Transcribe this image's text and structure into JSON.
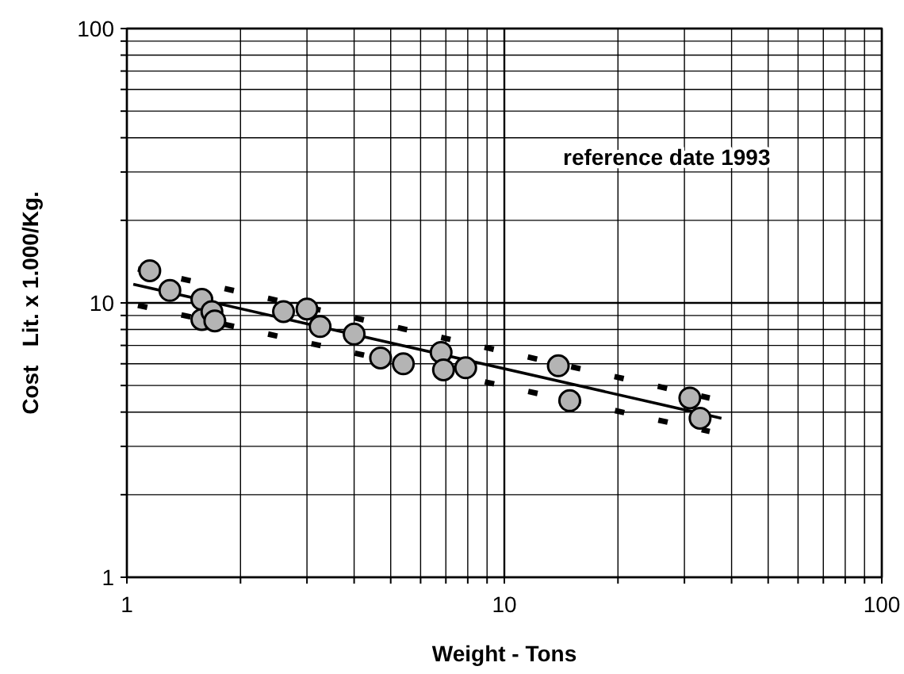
{
  "chart_data": {
    "type": "scatter",
    "xlabel": "Weight - Tons",
    "ylabel": "Cost   Lit. x 1.000/Kg.",
    "log": "xy",
    "grid": true,
    "xlim": [
      1,
      100
    ],
    "ylim": [
      1,
      100
    ],
    "xticks": [
      1,
      {
        "value": 2,
        "label": null
      },
      {
        "value": 3,
        "label": null
      },
      {
        "value": 4,
        "label": null
      },
      {
        "value": 5,
        "label": null
      },
      {
        "value": 6,
        "label": null
      },
      {
        "value": 7,
        "label": null
      },
      {
        "value": 8,
        "label": null
      },
      {
        "value": 9,
        "label": null
      },
      10,
      {
        "value": 20,
        "label": null
      },
      {
        "value": 30,
        "label": null
      },
      {
        "value": 40,
        "label": null
      },
      {
        "value": 50,
        "label": null
      },
      {
        "value": 60,
        "label": null
      },
      {
        "value": 70,
        "label": null
      },
      {
        "value": 80,
        "label": null
      },
      {
        "value": 90,
        "label": null
      },
      100
    ],
    "yticks": [
      1,
      {
        "value": 2,
        "label": null
      },
      {
        "value": 3,
        "label": null
      },
      {
        "value": 4,
        "label": null
      },
      {
        "value": 5,
        "label": null
      },
      {
        "value": 6,
        "label": null
      },
      {
        "value": 7,
        "label": null
      },
      {
        "value": 8,
        "label": null
      },
      {
        "value": 9,
        "label": null
      },
      10,
      {
        "value": 20,
        "label": null
      },
      {
        "value": 30,
        "label": null
      },
      {
        "value": 40,
        "label": null
      },
      {
        "value": 50,
        "label": null
      },
      {
        "value": 60,
        "label": null
      },
      {
        "value": 70,
        "label": null
      },
      {
        "value": 80,
        "label": null
      },
      {
        "value": 90,
        "label": null
      },
      100
    ],
    "annotations": [
      "reference date 1993"
    ],
    "series": [
      {
        "marker": "circle",
        "color": "#b4b4b4",
        "x": [
          1.15,
          1.3,
          1.58,
          1.58,
          1.68,
          1.71,
          2.6,
          3.0,
          3.25,
          4.0,
          4.7,
          5.4,
          6.8,
          6.9,
          7.9,
          13.9,
          14.9,
          31,
          33
        ],
        "values": [
          13.1,
          11.1,
          10.3,
          8.7,
          9.3,
          8.6,
          9.3,
          9.5,
          8.2,
          7.7,
          6.3,
          6.0,
          6.6,
          5.7,
          5.8,
          5.9,
          4.4,
          4.5,
          3.8
        ]
      },
      {
        "type": "line",
        "color": "#000000",
        "line_style": "solid",
        "marker": "none",
        "x": [
          1.04,
          37.6
        ],
        "values": [
          11.7,
          3.8
        ]
      },
      {
        "type": "line",
        "color": "#000000",
        "line_style": "dashed",
        "marker": "none",
        "x": [
          1.07,
          35
        ],
        "values": [
          13.3,
          4.5
        ]
      },
      {
        "type": "line",
        "color": "#000000",
        "line_style": "dashed",
        "marker": "none",
        "x": [
          1.07,
          35
        ],
        "values": [
          9.8,
          3.4
        ]
      }
    ]
  }
}
